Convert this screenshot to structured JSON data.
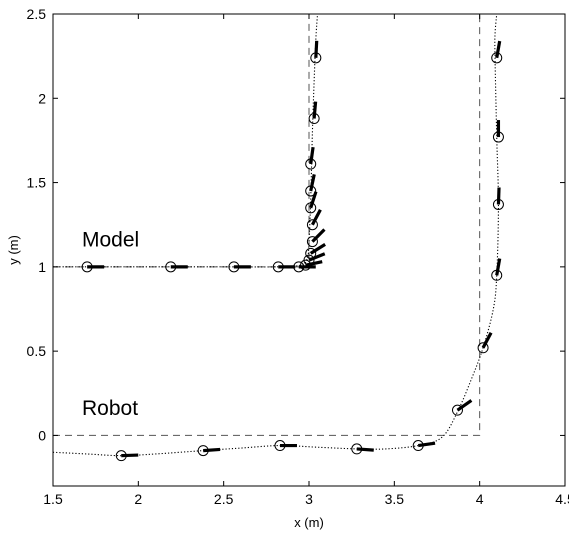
{
  "chart_data": {
    "type": "scatter",
    "title": "",
    "xlabel": "x (m)",
    "ylabel": "y (m)",
    "xlim": [
      1.5,
      4.5
    ],
    "ylim": [
      -0.3,
      2.5
    ],
    "xticks": [
      "1.5",
      "2",
      "2.5",
      "3",
      "3.5",
      "4",
      "4.5"
    ],
    "yticks": [
      "0",
      "0.5",
      "1",
      "1.5",
      "2",
      "2.5"
    ],
    "grid": false,
    "annotations": [
      {
        "text": "Model",
        "x": 1.67,
        "y": 1.12
      },
      {
        "text": "Robot",
        "x": 1.67,
        "y": 0.12
      }
    ],
    "reference_paths": [
      {
        "style": "dashed",
        "x": [
          1.5,
          3.0,
          3.0
        ],
        "y": [
          1.0,
          1.0,
          2.5
        ]
      },
      {
        "style": "dashed",
        "x": [
          1.5,
          4.0,
          4.0
        ],
        "y": [
          0.0,
          0.0,
          2.5
        ]
      }
    ],
    "trajectories": [
      {
        "label": "Model",
        "style": "dotted",
        "x": [
          1.5,
          2.0,
          2.5,
          2.8,
          2.95,
          2.99,
          3.0,
          3.01,
          3.02,
          3.03,
          3.04,
          3.05
        ],
        "y": [
          1.0,
          1.0,
          1.0,
          1.0,
          1.01,
          1.05,
          1.15,
          1.4,
          1.8,
          2.1,
          2.35,
          2.5
        ],
        "poses": [
          {
            "x": 1.7,
            "y": 1.0,
            "heading_deg": 0
          },
          {
            "x": 2.19,
            "y": 1.0,
            "heading_deg": 0
          },
          {
            "x": 2.56,
            "y": 1.0,
            "heading_deg": 0
          },
          {
            "x": 2.82,
            "y": 1.0,
            "heading_deg": 0
          },
          {
            "x": 2.94,
            "y": 1.0,
            "heading_deg": 0
          },
          {
            "x": 2.98,
            "y": 1.01,
            "heading_deg": 12
          },
          {
            "x": 3.0,
            "y": 1.04,
            "heading_deg": 22
          },
          {
            "x": 3.01,
            "y": 1.08,
            "heading_deg": 32
          },
          {
            "x": 3.02,
            "y": 1.15,
            "heading_deg": 45
          },
          {
            "x": 3.02,
            "y": 1.25,
            "heading_deg": 62
          },
          {
            "x": 3.01,
            "y": 1.35,
            "heading_deg": 72
          },
          {
            "x": 3.01,
            "y": 1.45,
            "heading_deg": 78
          },
          {
            "x": 3.01,
            "y": 1.61,
            "heading_deg": 82
          },
          {
            "x": 3.03,
            "y": 1.88,
            "heading_deg": 85
          },
          {
            "x": 3.04,
            "y": 2.24,
            "heading_deg": 87
          }
        ]
      },
      {
        "label": "Robot",
        "style": "dotted",
        "x": [
          1.5,
          1.7,
          1.9,
          2.1,
          2.38,
          2.6,
          2.83,
          3.05,
          3.28,
          3.45,
          3.64,
          3.78,
          3.87,
          3.95,
          4.02,
          4.08,
          4.1,
          4.11,
          4.1,
          4.09,
          4.09,
          4.1
        ],
        "y": [
          -0.1,
          -0.11,
          -0.12,
          -0.11,
          -0.09,
          -0.075,
          -0.06,
          -0.07,
          -0.08,
          -0.08,
          -0.06,
          -0.01,
          0.14,
          0.33,
          0.52,
          0.75,
          0.95,
          1.37,
          1.77,
          2.24,
          2.38,
          2.5
        ],
        "poses": [
          {
            "x": 1.9,
            "y": -0.12,
            "heading_deg": 2
          },
          {
            "x": 2.38,
            "y": -0.09,
            "heading_deg": 4
          },
          {
            "x": 2.83,
            "y": -0.06,
            "heading_deg": 0
          },
          {
            "x": 3.28,
            "y": -0.08,
            "heading_deg": -4
          },
          {
            "x": 3.64,
            "y": -0.06,
            "heading_deg": 8
          },
          {
            "x": 3.87,
            "y": 0.15,
            "heading_deg": 35
          },
          {
            "x": 4.02,
            "y": 0.52,
            "heading_deg": 62
          },
          {
            "x": 4.1,
            "y": 0.95,
            "heading_deg": 80
          },
          {
            "x": 4.11,
            "y": 1.37,
            "heading_deg": 88
          },
          {
            "x": 4.11,
            "y": 1.77,
            "heading_deg": 90
          },
          {
            "x": 4.1,
            "y": 2.24,
            "heading_deg": 80
          }
        ]
      }
    ]
  }
}
